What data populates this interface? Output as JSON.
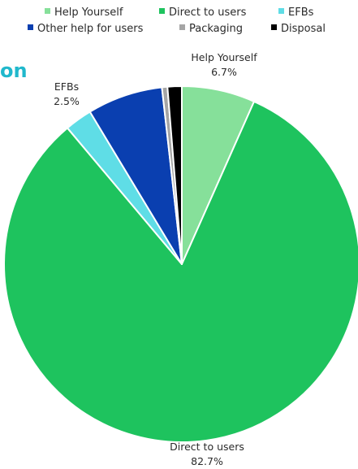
{
  "background_title_fragment": "on",
  "chart_data": {
    "type": "pie",
    "slices": [
      {
        "label": "Help Yourself",
        "value": 6.7,
        "color": "#86e09a"
      },
      {
        "label": "Direct to users",
        "value": 82.7,
        "color": "#1ec35e"
      },
      {
        "label": "EFBs",
        "value": 2.5,
        "color": "#5fdde6"
      },
      {
        "label": "Other help for users",
        "value": 6.9,
        "color": "#0a3fb0"
      },
      {
        "label": "Packaging",
        "value": 0.5,
        "color": "#a5a5a5"
      },
      {
        "label": "Disposal",
        "value": 1.3,
        "color": "#000000"
      }
    ],
    "legend": {
      "placement": "top",
      "rows": [
        [
          "Help Yourself",
          "Direct to users",
          "EFBs"
        ],
        [
          "Other help for users",
          "Packaging",
          "Disposal"
        ]
      ]
    },
    "data_labels": [
      {
        "label": "Help Yourself",
        "name": "Help Yourself",
        "percent": "6.7%"
      },
      {
        "label": "EFBs",
        "name": "EFBs",
        "percent": "2.5%"
      },
      {
        "label": "Direct to users",
        "name": "Direct to users",
        "percent": "82.7%"
      }
    ]
  }
}
